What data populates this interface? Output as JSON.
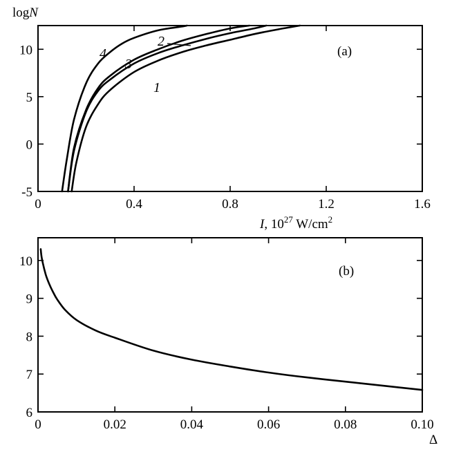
{
  "chart_data": [
    {
      "panel": "(a)",
      "type": "line",
      "ylabel": "logN",
      "xlabel": "I, 10^27 W/cm^2",
      "xlim": [
        0,
        1.6
      ],
      "ylim": [
        -5,
        12.5
      ],
      "xticks": [
        "0",
        "0.4",
        "0.8",
        "1.2",
        "1.6"
      ],
      "yticks": [
        "-5",
        "0",
        "5",
        "10"
      ],
      "grid": false,
      "series": [
        {
          "name": "1",
          "x": [
            0.14,
            0.16,
            0.2,
            0.25,
            0.3,
            0.4,
            0.5,
            0.6,
            0.7,
            0.8,
            0.9,
            1.0,
            1.09
          ],
          "y": [
            -5,
            -1.9,
            1.8,
            4.2,
            5.7,
            7.6,
            8.8,
            9.7,
            10.4,
            11.0,
            11.6,
            12.1,
            12.5
          ]
        },
        {
          "name": "2",
          "x": [
            0.125,
            0.15,
            0.2,
            0.25,
            0.3,
            0.4,
            0.5,
            0.6,
            0.7,
            0.8,
            0.9,
            0.95
          ],
          "y": [
            -5,
            -0.7,
            3.4,
            5.6,
            6.8,
            8.5,
            9.6,
            10.4,
            11.1,
            11.7,
            12.2,
            12.5
          ]
        },
        {
          "name": "3",
          "x": [
            0.125,
            0.15,
            0.2,
            0.25,
            0.3,
            0.4,
            0.5,
            0.6,
            0.7,
            0.8,
            0.88
          ],
          "y": [
            -5,
            -0.4,
            3.6,
            5.9,
            7.2,
            8.9,
            10.0,
            10.9,
            11.6,
            12.2,
            12.5
          ]
        },
        {
          "name": "4",
          "x": [
            0.1,
            0.12,
            0.15,
            0.2,
            0.25,
            0.3,
            0.35,
            0.4,
            0.5,
            0.6,
            0.62
          ],
          "y": [
            -5,
            -1.6,
            2.6,
            6.4,
            8.5,
            9.7,
            10.6,
            11.2,
            12.0,
            12.4,
            12.5
          ]
        }
      ],
      "annotations": [
        "(a)"
      ]
    },
    {
      "panel": "(b)",
      "type": "line",
      "xlabel": "Δ",
      "xlim": [
        0,
        0.1
      ],
      "ylim": [
        6,
        10.6
      ],
      "xticks": [
        "0",
        "0.02",
        "0.04",
        "0.06",
        "0.08",
        "0.10"
      ],
      "yticks": [
        "6",
        "7",
        "8",
        "9",
        "10"
      ],
      "grid": false,
      "series": [
        {
          "x": [
            0.0007,
            0.001,
            0.002,
            0.003,
            0.004,
            0.005,
            0.007,
            0.01,
            0.015,
            0.02,
            0.03,
            0.04,
            0.05,
            0.06,
            0.07,
            0.08,
            0.09,
            0.1
          ],
          "y": [
            10.3,
            10.05,
            9.63,
            9.36,
            9.15,
            8.97,
            8.7,
            8.43,
            8.15,
            7.96,
            7.62,
            7.38,
            7.2,
            7.04,
            6.91,
            6.8,
            6.69,
            6.58
          ]
        }
      ],
      "annotations": [
        "(b)"
      ]
    }
  ]
}
